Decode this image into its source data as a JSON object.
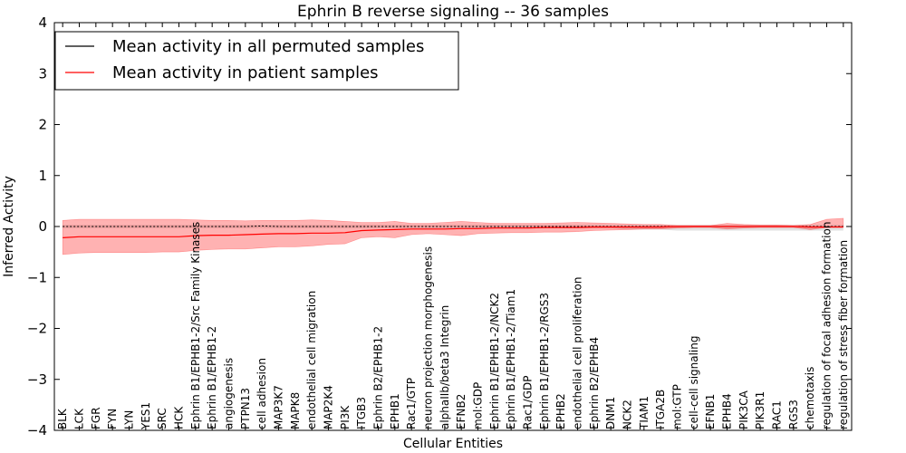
{
  "chart_data": {
    "type": "line",
    "title": "Ephrin B reverse signaling -- 36 samples",
    "xlabel": "Cellular Entities",
    "ylabel": "Inferred Activity",
    "ylim": [
      -4,
      4
    ],
    "yticks": [
      4,
      3,
      2,
      1,
      0,
      -1,
      -2,
      -3,
      -4
    ],
    "ytick_labels": [
      "4",
      "3",
      "2",
      "1",
      "0",
      "−1",
      "−2",
      "−3",
      "−4"
    ],
    "grid": false,
    "legend_position": "top-left",
    "categories": [
      "BLK",
      "LCK",
      "FGR",
      "FYN",
      "LYN",
      "YES1",
      "SRC",
      "HCK",
      "Ephrin B1/EPHB1-2/Src Family Kinases",
      "Ephrin B1/EPHB1-2",
      "angiogenesis",
      "PTPN13",
      "cell adhesion",
      "MAP3K7",
      "MAPK8",
      "endothelial cell migration",
      "MAP2K4",
      "PI3K",
      "ITGB3",
      "Ephrin B2/EPHB1-2",
      "EPHB1",
      "Rac1/GTP",
      "neuron projection morphogenesis",
      "alphaIIb/beta3 Integrin",
      "EFNB2",
      "mol:GDP",
      "Ephrin B1/EPHB1-2/NCK2",
      "Ephrin B1/EPHB1-2/Tiam1",
      "Rac1/GDP",
      "Ephrin B1/EPHB1-2/RGS3",
      "EPHB2",
      "endothelial cell proliferation",
      "Ephrin B2/EPHB4",
      "DNM1",
      "NCK2",
      "TIAM1",
      "ITGA2B",
      "mol:GTP",
      "cell-cell signaling",
      "EFNB1",
      "EPHB4",
      "PIK3CA",
      "PIK3R1",
      "RAC1",
      "RGS3",
      "chemotaxis",
      "regulation of focal adhesion formation",
      "regulation of stress fiber formation"
    ],
    "series": [
      {
        "name": "Mean activity in all permuted samples",
        "color": "#000000",
        "values": [
          0,
          0,
          0,
          0,
          0,
          0,
          0,
          0,
          0,
          0,
          0,
          0,
          0.01,
          0,
          0,
          0,
          0,
          0,
          0,
          0,
          0,
          0,
          0,
          0,
          0,
          0,
          0,
          0,
          0,
          0,
          0,
          0,
          0,
          0,
          0,
          0,
          0,
          0,
          0,
          0,
          0,
          0,
          0,
          0,
          0,
          0,
          0,
          0
        ],
        "band_upper": [
          0.03,
          0.03,
          0.03,
          0.03,
          0.03,
          0.03,
          0.03,
          0.03,
          0.03,
          0.03,
          0.03,
          0.03,
          0.03,
          0.03,
          0.03,
          0.03,
          0.03,
          0.03,
          0.03,
          0.03,
          0.03,
          0.03,
          0.03,
          0.03,
          0.03,
          0.03,
          0.03,
          0.03,
          0.03,
          0.03,
          0.03,
          0.03,
          0.03,
          0.03,
          0.03,
          0.03,
          0.03,
          0.03,
          0.03,
          0.03,
          0.03,
          0.03,
          0.03,
          0.03,
          0.03,
          0.03,
          0.03,
          0.03
        ],
        "band_lower": [
          -0.03,
          -0.03,
          -0.03,
          -0.03,
          -0.03,
          -0.03,
          -0.03,
          -0.03,
          -0.03,
          -0.03,
          -0.03,
          -0.03,
          -0.03,
          -0.03,
          -0.03,
          -0.03,
          -0.03,
          -0.03,
          -0.03,
          -0.03,
          -0.03,
          -0.03,
          -0.03,
          -0.03,
          -0.03,
          -0.03,
          -0.03,
          -0.03,
          -0.03,
          -0.03,
          -0.03,
          -0.03,
          -0.03,
          -0.03,
          -0.06,
          -0.06,
          -0.06,
          -0.08,
          -0.08,
          -0.08,
          -0.08,
          -0.08,
          -0.08,
          -0.08,
          -0.08,
          -0.08,
          -0.08,
          -0.08
        ]
      },
      {
        "name": "Mean activity in patient samples",
        "color": "#ff0000",
        "values": [
          -0.22,
          -0.2,
          -0.2,
          -0.2,
          -0.2,
          -0.2,
          -0.2,
          -0.2,
          -0.18,
          -0.17,
          -0.17,
          -0.16,
          -0.15,
          -0.14,
          -0.14,
          -0.13,
          -0.13,
          -0.12,
          -0.08,
          -0.07,
          -0.06,
          -0.05,
          -0.05,
          -0.05,
          -0.04,
          -0.04,
          -0.03,
          -0.03,
          -0.03,
          -0.02,
          -0.02,
          -0.02,
          -0.01,
          -0.01,
          -0.01,
          -0.01,
          -0.01,
          0,
          0,
          0,
          0,
          0,
          0,
          0,
          0,
          -0.01,
          -0.01,
          -0.01
        ],
        "band_upper": [
          0.12,
          0.14,
          0.14,
          0.14,
          0.14,
          0.14,
          0.14,
          0.14,
          0.13,
          0.12,
          0.12,
          0.11,
          0.12,
          0.12,
          0.12,
          0.13,
          0.12,
          0.1,
          0.08,
          0.08,
          0.1,
          0.06,
          0.06,
          0.08,
          0.1,
          0.08,
          0.06,
          0.06,
          0.06,
          0.06,
          0.07,
          0.08,
          0.07,
          0.06,
          0.05,
          0.04,
          0.04,
          0.02,
          0.02,
          0.02,
          0.06,
          0.04,
          0.03,
          0.03,
          0.02,
          0.04,
          0.14,
          0.16
        ],
        "band_lower": [
          -0.55,
          -0.52,
          -0.51,
          -0.51,
          -0.51,
          -0.51,
          -0.5,
          -0.5,
          -0.47,
          -0.45,
          -0.44,
          -0.44,
          -0.42,
          -0.4,
          -0.4,
          -0.38,
          -0.35,
          -0.34,
          -0.22,
          -0.2,
          -0.22,
          -0.16,
          -0.14,
          -0.16,
          -0.18,
          -0.14,
          -0.13,
          -0.12,
          -0.12,
          -0.11,
          -0.11,
          -0.1,
          -0.08,
          -0.07,
          -0.06,
          -0.05,
          -0.05,
          -0.03,
          -0.02,
          -0.02,
          -0.05,
          -0.03,
          -0.02,
          -0.02,
          -0.02,
          -0.06,
          -0.02,
          0
        ]
      }
    ]
  }
}
